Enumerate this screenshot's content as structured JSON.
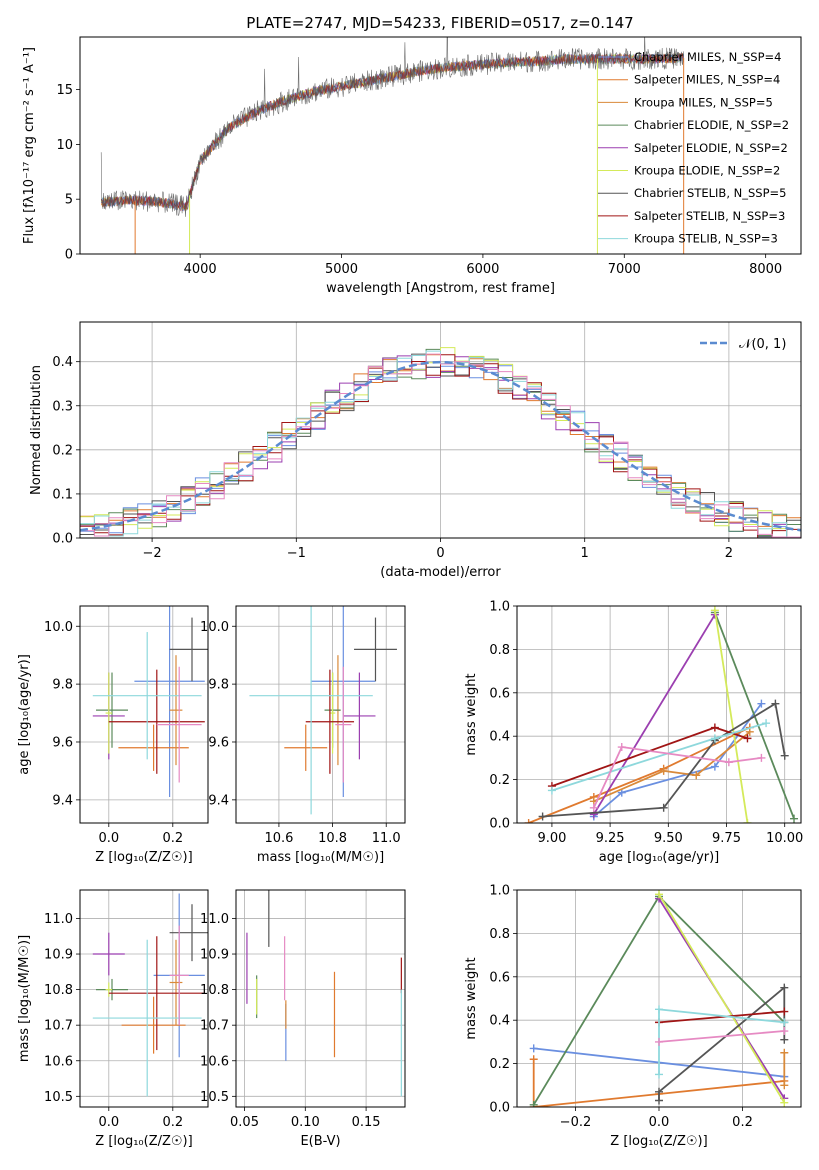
{
  "title": "PLATE=2747, MJD=54233, FIBERID=0517, z=0.147",
  "colors": {
    "chabrier_miles": "#6a8fe0",
    "salpeter_miles": "#e07a2f",
    "kroupa_miles": "#d98a3a",
    "chabrier_elodie": "#5b8a5b",
    "salpeter_elodie": "#9b3fb0",
    "kroupa_elodie": "#d4ea5a",
    "chabrier_stelib": "#555555",
    "salpeter_stelib": "#a01515",
    "kroupa_stelib": "#8ed8dc",
    "pink": "#e68ac3",
    "normal_curve": "#5b8bd0"
  },
  "chart_data": [
    {
      "id": "spectrum",
      "type": "line",
      "xlabel": "wavelength [Angstrom, rest frame]",
      "ylabel": "Flux [fλ10⁻¹⁷ erg cm⁻² s⁻¹ A⁻¹]",
      "xlim": [
        3150,
        8250
      ],
      "ylim": [
        0,
        19.8
      ],
      "xticks": [
        "4000",
        "5000",
        "6000",
        "7000",
        "8000"
      ],
      "yticks": [
        "0",
        "5",
        "10",
        "15"
      ],
      "legend_position": "top-right",
      "legend": [
        "Chabrier MILES, N_SSP=4",
        "Salpeter MILES, N_SSP=4",
        "Kroupa MILES, N_SSP=5",
        "Chabrier ELODIE, N_SSP=2",
        "Salpeter ELODIE, N_SSP=2",
        "Kroupa ELODIE, N_SSP=2",
        "Chabrier STELIB, N_SSP=5",
        "Salpeter STELIB, N_SSP=3",
        "Kroupa STELIB, N_SSP=3"
      ],
      "continuum": [
        [
          3300,
          4.7
        ],
        [
          3500,
          4.9
        ],
        [
          3700,
          4.8
        ],
        [
          3900,
          4.3
        ],
        [
          4000,
          8.5
        ],
        [
          4200,
          11.5
        ],
        [
          4400,
          13.0
        ],
        [
          4600,
          14.0
        ],
        [
          4800,
          14.8
        ],
        [
          5000,
          15.3
        ],
        [
          5200,
          15.8
        ],
        [
          5400,
          16.3
        ],
        [
          5600,
          16.8
        ],
        [
          5800,
          17.1
        ],
        [
          6000,
          17.3
        ],
        [
          6200,
          17.5
        ],
        [
          6400,
          17.6
        ],
        [
          6600,
          17.8
        ],
        [
          6800,
          17.8
        ],
        [
          7000,
          17.8
        ],
        [
          7200,
          17.8
        ],
        [
          7400,
          17.9
        ]
      ]
    },
    {
      "id": "residuals",
      "type": "line",
      "xlabel": "(data-model)/error",
      "ylabel": "Normed distribution",
      "xlim": [
        -2.5,
        2.5
      ],
      "ylim": [
        0,
        0.49
      ],
      "xticks": [
        "−2",
        "−1",
        "0",
        "1",
        "2"
      ],
      "yticks": [
        "0.0",
        "0.1",
        "0.2",
        "0.3",
        "0.4"
      ],
      "legend": [
        "𝒩(0, 1)"
      ],
      "legend_position": "top-right",
      "grid": true
    },
    {
      "id": "age_vs_Z",
      "type": "scatter",
      "xlabel": "Z [log₁₀(Z/Z☉)]",
      "ylabel": "age  [log₁₀(age/yr)]",
      "xlim": [
        -0.09,
        0.31
      ],
      "ylim": [
        9.32,
        10.07
      ],
      "xticks": [
        "0.0",
        "0.2"
      ],
      "yticks": [
        "9.4",
        "9.6",
        "9.8",
        "10.0"
      ],
      "grid": true,
      "points": [
        {
          "c": "chabrier_miles",
          "x": 0.19,
          "y": 9.81,
          "dx": 0.11,
          "dy": 0.4
        },
        {
          "c": "salpeter_miles",
          "x": 0.14,
          "y": 9.58,
          "dx": 0.11,
          "dy": 0.08
        },
        {
          "c": "kroupa_miles",
          "x": 0.21,
          "y": 9.71,
          "dx": 0.02,
          "dy": 0.19
        },
        {
          "c": "chabrier_elodie",
          "x": 0.01,
          "y": 9.71,
          "dx": 0.05,
          "dy": 0.13
        },
        {
          "c": "salpeter_elodie",
          "x": 0.0,
          "y": 9.69,
          "dx": 0.05,
          "dy": 0.15
        },
        {
          "c": "kroupa_elodie",
          "x": 0.0,
          "y": 9.7,
          "dx": 0.01,
          "dy": 0.14
        },
        {
          "c": "chabrier_stelib",
          "x": 0.26,
          "y": 9.92,
          "dx": 0.07,
          "dy": 0.11
        },
        {
          "c": "salpeter_stelib",
          "x": 0.15,
          "y": 9.67,
          "dx": 0.15,
          "dy": 0.18
        },
        {
          "c": "kroupa_stelib",
          "x": 0.12,
          "y": 9.76,
          "dx": 0.17,
          "dy": 0.22
        },
        {
          "c": "pink",
          "x": 0.22,
          "y": 9.66,
          "dx": 0.07,
          "dy": 0.2
        }
      ]
    },
    {
      "id": "age_vs_mass",
      "type": "scatter",
      "xlabel": "mass [log₁₀(M/M☉)]",
      "ylabel": "",
      "xlim": [
        10.44,
        11.07
      ],
      "ylim": [
        9.32,
        10.07
      ],
      "xticks": [
        "10.6",
        "10.8",
        "11.0"
      ],
      "yticks": [
        "9.4",
        "9.6",
        "9.8",
        "10.0"
      ],
      "grid": true,
      "points": [
        {
          "c": "chabrier_miles",
          "x": 10.84,
          "y": 9.81,
          "dx": 0.12,
          "dy": 0.4
        },
        {
          "c": "salpeter_miles",
          "x": 10.7,
          "y": 9.58,
          "dx": 0.08,
          "dy": 0.08
        },
        {
          "c": "kroupa_miles",
          "x": 10.82,
          "y": 9.71,
          "dx": 0.01,
          "dy": 0.19
        },
        {
          "c": "chabrier_elodie",
          "x": 10.8,
          "y": 9.71,
          "dx": 0.03,
          "dy": 0.13
        },
        {
          "c": "salpeter_elodie",
          "x": 10.9,
          "y": 9.69,
          "dx": 0.06,
          "dy": 0.15
        },
        {
          "c": "kroupa_elodie",
          "x": 10.8,
          "y": 9.7,
          "dx": 0.01,
          "dy": 0.14
        },
        {
          "c": "chabrier_stelib",
          "x": 10.96,
          "y": 9.92,
          "dx": 0.08,
          "dy": 0.11
        },
        {
          "c": "salpeter_stelib",
          "x": 10.79,
          "y": 9.67,
          "dx": 0.09,
          "dy": 0.18
        },
        {
          "c": "kroupa_stelib",
          "x": 10.72,
          "y": 9.76,
          "dx": 0.23,
          "dy": 0.41
        },
        {
          "c": "pink",
          "x": 10.84,
          "y": 9.66,
          "dx": 0.03,
          "dy": 0.2
        }
      ]
    },
    {
      "id": "weight_vs_age",
      "type": "line",
      "xlabel": "age  [log₁₀(age/yr)]",
      "ylabel": "mass weight",
      "xlim": [
        8.85,
        10.07
      ],
      "ylim": [
        0,
        1
      ],
      "xticks": [
        "9.00",
        "9.25",
        "9.50",
        "9.75",
        "10.00"
      ],
      "yticks": [
        "0.0",
        "0.2",
        "0.4",
        "0.6",
        "0.8",
        "1.0"
      ],
      "grid": true,
      "series": [
        {
          "c": "chabrier_miles",
          "x": [
            9.18,
            9.3,
            9.7,
            9.9
          ],
          "y": [
            0.03,
            0.14,
            0.26,
            0.55
          ]
        },
        {
          "c": "salpeter_miles",
          "x": [
            8.9,
            9.18,
            9.48,
            9.85
          ],
          "y": [
            0.0,
            0.12,
            0.25,
            0.44
          ]
        },
        {
          "c": "kroupa_miles",
          "x": [
            9.18,
            9.48,
            9.62,
            9.85
          ],
          "y": [
            0.1,
            0.24,
            0.22,
            0.42
          ]
        },
        {
          "c": "chabrier_elodie",
          "x": [
            9.7,
            10.04
          ],
          "y": [
            0.97,
            0.02
          ]
        },
        {
          "c": "salpeter_elodie",
          "x": [
            9.18,
            9.7
          ],
          "y": [
            0.04,
            0.96
          ]
        },
        {
          "c": "kroupa_elodie",
          "x": [
            9.7,
            9.84
          ],
          "y": [
            0.98,
            0.0
          ]
        },
        {
          "c": "chabrier_stelib",
          "x": [
            8.96,
            9.48,
            9.7,
            9.96,
            10.0
          ],
          "y": [
            0.03,
            0.07,
            0.38,
            0.55,
            0.31
          ]
        },
        {
          "c": "salpeter_stelib",
          "x": [
            9.0,
            9.7,
            9.84
          ],
          "y": [
            0.17,
            0.44,
            0.39
          ]
        },
        {
          "c": "kroupa_stelib",
          "x": [
            9.0,
            9.7,
            9.92
          ],
          "y": [
            0.15,
            0.39,
            0.46
          ]
        },
        {
          "c": "pink",
          "x": [
            9.18,
            9.3,
            9.76,
            9.9
          ],
          "y": [
            0.07,
            0.35,
            0.28,
            0.3
          ]
        }
      ]
    },
    {
      "id": "mass_vs_Z",
      "type": "scatter",
      "xlabel": "Z [log₁₀(Z/Z☉)]",
      "ylabel": "mass [log₁₀(M/M☉)]",
      "xlim": [
        -0.09,
        0.31
      ],
      "ylim": [
        10.47,
        11.08
      ],
      "xticks": [
        "0.0",
        "0.2"
      ],
      "yticks": [
        "10.5",
        "10.6",
        "10.7",
        "10.8",
        "10.9",
        "11.0"
      ],
      "grid": true,
      "points": [
        {
          "c": "chabrier_miles",
          "x": 0.22,
          "y": 10.84,
          "dx": 0.08,
          "dy": 0.23
        },
        {
          "c": "salpeter_miles",
          "x": 0.14,
          "y": 10.7,
          "dx": 0.1,
          "dy": 0.08
        },
        {
          "c": "kroupa_miles",
          "x": 0.21,
          "y": 10.82,
          "dx": 0.02,
          "dy": 0.12
        },
        {
          "c": "chabrier_elodie",
          "x": 0.01,
          "y": 10.8,
          "dx": 0.05,
          "dy": 0.03
        },
        {
          "c": "salpeter_elodie",
          "x": 0.0,
          "y": 10.9,
          "dx": 0.05,
          "dy": 0.06
        },
        {
          "c": "kroupa_elodie",
          "x": 0.0,
          "y": 10.8,
          "dx": 0.01,
          "dy": 0.02
        },
        {
          "c": "chabrier_stelib",
          "x": 0.26,
          "y": 10.96,
          "dx": 0.07,
          "dy": 0.08
        },
        {
          "c": "salpeter_stelib",
          "x": 0.15,
          "y": 10.79,
          "dx": 0.15,
          "dy": 0.16
        },
        {
          "c": "kroupa_stelib",
          "x": 0.12,
          "y": 10.72,
          "dx": 0.17,
          "dy": 0.22
        },
        {
          "c": "pink",
          "x": 0.22,
          "y": 10.84,
          "dx": 0.03,
          "dy": 0.14
        }
      ]
    },
    {
      "id": "mass_vs_ebv",
      "type": "scatter",
      "xlabel": "E(B-V)",
      "ylabel": "",
      "xlim": [
        0.043,
        0.182
      ],
      "ylim": [
        10.47,
        11.08
      ],
      "xticks": [
        "0.05",
        "0.10",
        "0.15"
      ],
      "yticks": [
        "10.5",
        "10.6",
        "10.7",
        "10.8",
        "10.9",
        "11.0"
      ],
      "grid": true,
      "points": [
        {
          "c": "chabrier_miles",
          "x": 0.084,
          "y": 10.68,
          "dx": 0,
          "dy": 0.08
        },
        {
          "c": "salpeter_miles",
          "x": 0.124,
          "y": 10.73,
          "dx": 0,
          "dy": 0.12
        },
        {
          "c": "kroupa_miles",
          "x": 0.084,
          "y": 10.73,
          "dx": 0,
          "dy": 0.04
        },
        {
          "c": "chabrier_elodie",
          "x": 0.06,
          "y": 10.78,
          "dx": 0,
          "dy": 0.06
        },
        {
          "c": "salpeter_elodie",
          "x": 0.052,
          "y": 10.86,
          "dx": 0,
          "dy": 0.1
        },
        {
          "c": "kroupa_elodie",
          "x": 0.06,
          "y": 10.78,
          "dx": 0,
          "dy": 0.05
        },
        {
          "c": "chabrier_stelib",
          "x": 0.07,
          "y": 11.0,
          "dx": 0,
          "dy": 0.08
        },
        {
          "c": "salpeter_stelib",
          "x": 0.179,
          "y": 10.84,
          "dx": 0,
          "dy": 0.05
        },
        {
          "c": "kroupa_stelib",
          "x": 0.179,
          "y": 10.65,
          "dx": 0,
          "dy": 0.15
        },
        {
          "c": "pink",
          "x": 0.083,
          "y": 10.86,
          "dx": 0,
          "dy": 0.09
        }
      ]
    },
    {
      "id": "weight_vs_Z",
      "type": "line",
      "xlabel": "Z [log₁₀(Z/Z☉)]",
      "ylabel": "mass weight",
      "xlim": [
        -0.34,
        0.34
      ],
      "ylim": [
        0,
        1
      ],
      "xticks": [
        "−0.2",
        "0.0",
        "0.2"
      ],
      "yticks": [
        "0.0",
        "0.2",
        "0.4",
        "0.6",
        "0.8",
        "1.0"
      ],
      "grid": true,
      "series": [
        {
          "c": "chabrier_miles",
          "x": [
            -0.3,
            0.3
          ],
          "y": [
            0.27,
            0.14
          ]
        },
        {
          "c": "salpeter_miles",
          "x": [
            -0.3,
            -0.3,
            0.0,
            0.3
          ],
          "y": [
            0.22,
            0.0,
            0.06,
            0.12
          ]
        },
        {
          "c": "kroupa_miles",
          "x": [
            0.3,
            0.3
          ],
          "y": [
            0.25,
            0.1
          ]
        },
        {
          "c": "chabrier_elodie",
          "x": [
            -0.3,
            0.0,
            0.3
          ],
          "y": [
            0.01,
            0.97,
            0.39
          ]
        },
        {
          "c": "salpeter_elodie",
          "x": [
            0.0,
            0.3
          ],
          "y": [
            0.96,
            0.04
          ]
        },
        {
          "c": "kroupa_elodie",
          "x": [
            0.0,
            0.3
          ],
          "y": [
            0.98,
            0.02
          ]
        },
        {
          "c": "chabrier_stelib",
          "x": [
            0.0,
            0.0,
            0.3,
            0.3
          ],
          "y": [
            0.03,
            0.07,
            0.55,
            0.31
          ]
        },
        {
          "c": "salpeter_stelib",
          "x": [
            0.0,
            0.3
          ],
          "y": [
            0.39,
            0.44
          ]
        },
        {
          "c": "kroupa_stelib",
          "x": [
            0.0,
            0.0,
            0.3
          ],
          "y": [
            0.15,
            0.45,
            0.39
          ]
        },
        {
          "c": "pink",
          "x": [
            0.0,
            0.3
          ],
          "y": [
            0.3,
            0.35
          ]
        }
      ]
    }
  ]
}
